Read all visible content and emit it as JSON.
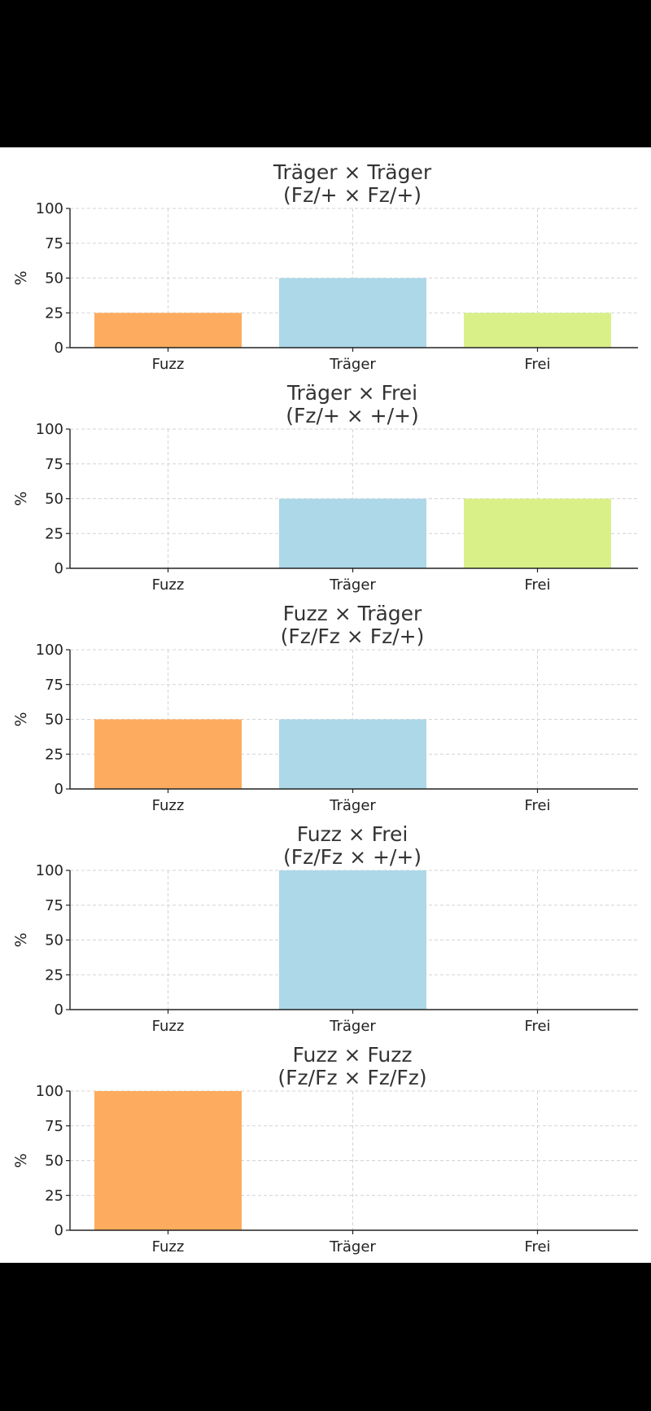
{
  "chart_data": [
    {
      "type": "bar",
      "title": "Träger × Träger",
      "subtitle": "(Fz/+ × Fz/+)",
      "xlabel": "",
      "ylabel": "%",
      "ylim": [
        0,
        100
      ],
      "yticks": [
        0,
        25,
        50,
        75,
        100
      ],
      "grid": true,
      "categories": [
        "Fuzz",
        "Träger",
        "Frei"
      ],
      "values": [
        25,
        50,
        25
      ]
    },
    {
      "type": "bar",
      "title": "Träger × Frei",
      "subtitle": "(Fz/+ × +/+)",
      "xlabel": "",
      "ylabel": "%",
      "ylim": [
        0,
        100
      ],
      "yticks": [
        0,
        25,
        50,
        75,
        100
      ],
      "grid": true,
      "categories": [
        "Fuzz",
        "Träger",
        "Frei"
      ],
      "values": [
        0,
        50,
        50
      ]
    },
    {
      "type": "bar",
      "title": "Fuzz × Träger",
      "subtitle": "(Fz/Fz × Fz/+)",
      "xlabel": "",
      "ylabel": "%",
      "ylim": [
        0,
        100
      ],
      "yticks": [
        0,
        25,
        50,
        75,
        100
      ],
      "grid": true,
      "categories": [
        "Fuzz",
        "Träger",
        "Frei"
      ],
      "values": [
        50,
        50,
        0
      ]
    },
    {
      "type": "bar",
      "title": "Fuzz × Frei",
      "subtitle": "(Fz/Fz × +/+)",
      "xlabel": "",
      "ylabel": "%",
      "ylim": [
        0,
        100
      ],
      "yticks": [
        0,
        25,
        50,
        75,
        100
      ],
      "grid": true,
      "categories": [
        "Fuzz",
        "Träger",
        "Frei"
      ],
      "values": [
        0,
        100,
        0
      ]
    },
    {
      "type": "bar",
      "title": "Fuzz × Fuzz",
      "subtitle": "(Fz/Fz × Fz/Fz)",
      "xlabel": "",
      "ylabel": "%",
      "ylim": [
        0,
        100
      ],
      "yticks": [
        0,
        25,
        50,
        75,
        100
      ],
      "grid": true,
      "categories": [
        "Fuzz",
        "Träger",
        "Frei"
      ],
      "values": [
        100,
        0,
        0
      ]
    }
  ],
  "colors": {
    "Fuzz": "#fdab5f",
    "Träger": "#acd8e8",
    "Frei": "#d9f088",
    "background": "#ffffff",
    "frame": "#000000"
  }
}
